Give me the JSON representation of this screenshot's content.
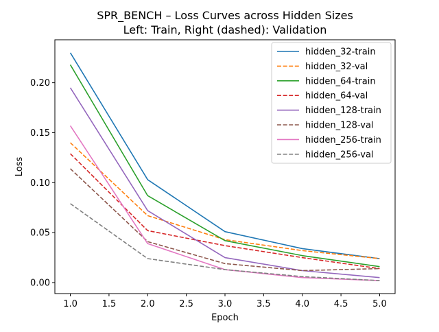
{
  "chart_data": {
    "type": "line",
    "title": "SPR_BENCH – Loss Curves across Hidden Sizes",
    "subtitle": "Left: Train, Right (dashed): Validation",
    "xlabel": "Epoch",
    "ylabel": "Loss",
    "xlim": [
      0.8,
      5.2
    ],
    "ylim": [
      -0.011,
      0.243
    ],
    "xticks": [
      "1.0",
      "1.5",
      "2.0",
      "2.5",
      "3.0",
      "3.5",
      "4.0",
      "4.5",
      "5.0"
    ],
    "yticks": [
      "0.00",
      "0.05",
      "0.10",
      "0.15",
      "0.20"
    ],
    "grid": false,
    "legend_position": "top-right",
    "x": [
      1,
      2,
      3,
      4,
      5
    ],
    "series": [
      {
        "name": "hidden_32-train",
        "color": "#1f77b4",
        "dashed": false,
        "values": [
          0.23,
          0.103,
          0.051,
          0.034,
          0.024
        ]
      },
      {
        "name": "hidden_32-val",
        "color": "#ff7f0e",
        "dashed": true,
        "values": [
          0.14,
          0.067,
          0.043,
          0.032,
          0.024
        ]
      },
      {
        "name": "hidden_64-train",
        "color": "#2ca02c",
        "dashed": false,
        "values": [
          0.218,
          0.087,
          0.042,
          0.027,
          0.016
        ]
      },
      {
        "name": "hidden_64-val",
        "color": "#d62728",
        "dashed": true,
        "values": [
          0.129,
          0.052,
          0.037,
          0.025,
          0.014
        ]
      },
      {
        "name": "hidden_128-train",
        "color": "#9467bd",
        "dashed": false,
        "values": [
          0.195,
          0.072,
          0.025,
          0.012,
          0.005
        ]
      },
      {
        "name": "hidden_128-val",
        "color": "#8c564b",
        "dashed": true,
        "values": [
          0.114,
          0.041,
          0.019,
          0.012,
          0.014
        ]
      },
      {
        "name": "hidden_256-train",
        "color": "#e377c2",
        "dashed": false,
        "values": [
          0.157,
          0.039,
          0.013,
          0.005,
          0.002
        ]
      },
      {
        "name": "hidden_256-val",
        "color": "#7f7f7f",
        "dashed": true,
        "values": [
          0.079,
          0.024,
          0.013,
          0.006,
          0.002
        ]
      }
    ]
  }
}
